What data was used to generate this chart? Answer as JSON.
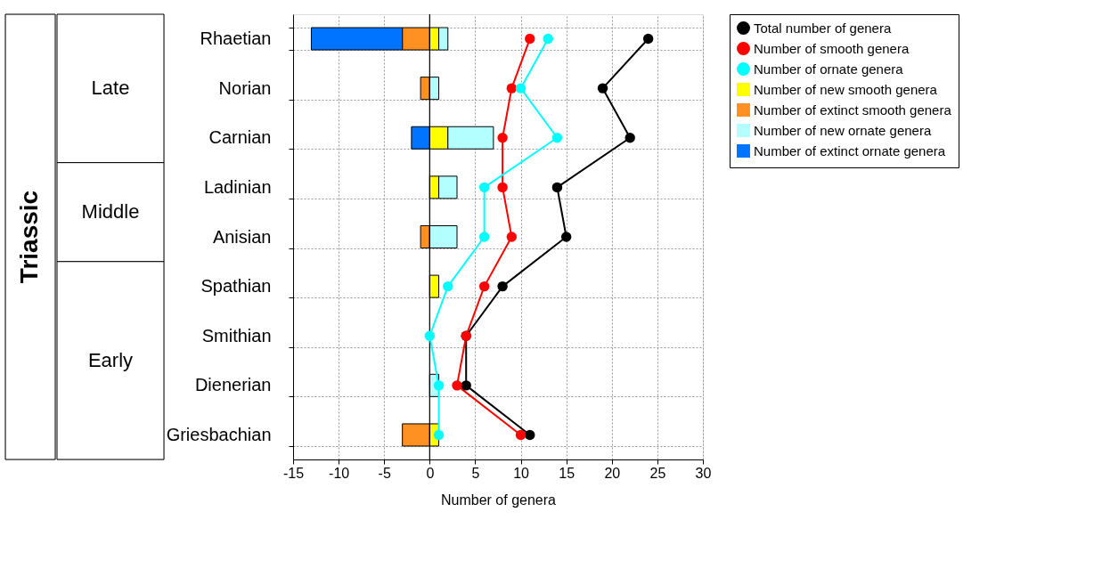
{
  "chart_data": {
    "type": "bar",
    "orientation": "horizontal",
    "stacked": true,
    "xlabel": "Number of genera",
    "categories": [
      "Rhaetian",
      "Norian",
      "Carnian",
      "Ladinian",
      "Anisian",
      "Spathian",
      "Smithian",
      "Dienerian",
      "Griesbachian"
    ],
    "series": [
      {
        "name": "Total number of genera",
        "type": "line",
        "marker": "circle",
        "color": "#000000",
        "values": [
          24,
          19,
          22,
          14,
          15,
          8,
          4,
          4,
          11
        ]
      },
      {
        "name": "Number of smooth genera",
        "type": "line",
        "marker": "circle",
        "color": "#ff0000",
        "values": [
          11,
          9,
          8,
          8,
          9,
          6,
          4,
          3,
          10
        ]
      },
      {
        "name": "Number of ornate genera",
        "type": "line",
        "marker": "circle",
        "color": "#00ffff",
        "values": [
          13,
          10,
          14,
          6,
          6,
          2,
          0,
          1,
          1
        ]
      },
      {
        "name": "Number of new smooth genera",
        "color": "#ffff00",
        "values": [
          1,
          null,
          2,
          1,
          null,
          1,
          null,
          null,
          1
        ]
      },
      {
        "name": "Number of extinct smooth genera",
        "color": "#ff9122",
        "values": [
          -3,
          -1,
          null,
          null,
          -1,
          null,
          null,
          null,
          -3
        ]
      },
      {
        "name": "Number of new ornate genera",
        "color": "#b3ffff",
        "values": [
          1,
          1,
          5,
          2,
          3,
          null,
          null,
          1,
          null
        ]
      },
      {
        "name": "Number of extinct ornate genera",
        "color": "#0073ff",
        "values": [
          -10,
          null,
          -2,
          null,
          null,
          null,
          null,
          null,
          null
        ]
      }
    ],
    "xlim": [
      -15,
      30
    ],
    "xticks": [
      -15,
      -10,
      -5,
      0,
      5,
      10,
      15,
      20,
      25,
      30
    ],
    "ref_lines": [
      {
        "axis": "x",
        "value": 0,
        "color": "#000000"
      }
    ],
    "annotations": [
      "Triassic",
      "Late",
      "Middle",
      "Early"
    ],
    "grid": true,
    "legend": "right"
  }
}
